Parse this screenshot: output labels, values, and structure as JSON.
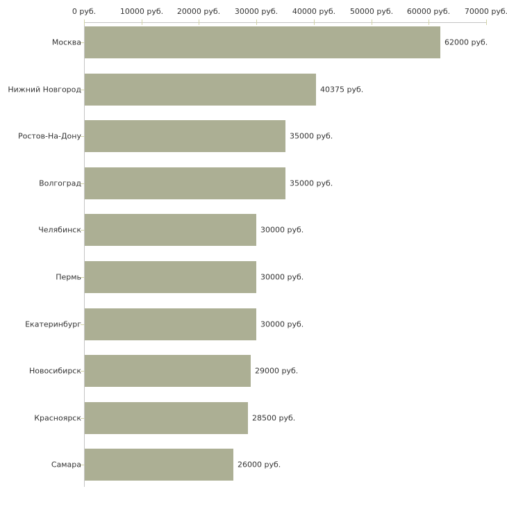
{
  "chart_data": {
    "type": "bar",
    "orientation": "horizontal",
    "title": "",
    "xlabel": "",
    "ylabel": "",
    "xlim": [
      0,
      70000
    ],
    "grid": false,
    "legend": null,
    "x_tick_values": [
      0,
      10000,
      20000,
      30000,
      40000,
      50000,
      60000,
      70000
    ],
    "x_tick_labels": [
      "0 руб.",
      "10000 руб.",
      "20000 руб.",
      "30000 руб.",
      "40000 руб.",
      "50000 руб.",
      "60000 руб.",
      "70000 руб."
    ],
    "categories": [
      "Москва",
      "Нижний Новгород",
      "Ростов-На-Дону",
      "Волгоград",
      "Челябинск",
      "Пермь",
      "Екатеринбург",
      "Новосибирск",
      "Красноярск",
      "Самара"
    ],
    "values": [
      62000,
      40375,
      35000,
      35000,
      30000,
      30000,
      30000,
      29000,
      28500,
      26000
    ],
    "value_labels": [
      "62000 руб.",
      "40375 руб.",
      "35000 руб.",
      "35000 руб.",
      "30000 руб.",
      "30000 руб.",
      "30000 руб.",
      "29000 руб.",
      "28500 руб.",
      "26000 руб."
    ],
    "colors": {
      "bar": "#acaf94",
      "axis_line": "#c4c4c4",
      "tick_mark": "#d2d3a6",
      "text": "#333333",
      "background": "#ffffff"
    }
  }
}
